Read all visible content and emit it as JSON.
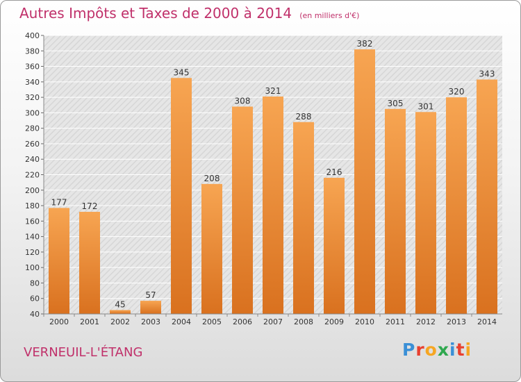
{
  "header": {
    "title": "Autres Impôts et Taxes de 2000 à 2014",
    "unit": "(en milliers d'€)"
  },
  "footer": {
    "city": "VERNEUIL-L'ÉTANG",
    "logo": "Proxiti"
  },
  "colors": {
    "title": "#c0306a",
    "bar_light": "#f7a552",
    "bar_dark": "#d9711f",
    "logo_letters": [
      "#3a8fd6",
      "#e8402f",
      "#f6a623",
      "#2fa84f",
      "#3a8fd6",
      "#e8402f",
      "#f6a623"
    ]
  },
  "chart_data": {
    "type": "bar",
    "categories": [
      "2000",
      "2001",
      "2002",
      "2003",
      "2004",
      "2005",
      "2006",
      "2007",
      "2008",
      "2009",
      "2010",
      "2011",
      "2012",
      "2013",
      "2014"
    ],
    "values": [
      177,
      172,
      45,
      57,
      345,
      208,
      308,
      321,
      288,
      216,
      382,
      305,
      301,
      320,
      343
    ],
    "ylim": [
      40,
      400
    ],
    "yticks": [
      40,
      60,
      80,
      100,
      120,
      140,
      160,
      180,
      200,
      220,
      240,
      260,
      280,
      300,
      320,
      340,
      360,
      380,
      400
    ],
    "grid": true,
    "legend": "none"
  }
}
